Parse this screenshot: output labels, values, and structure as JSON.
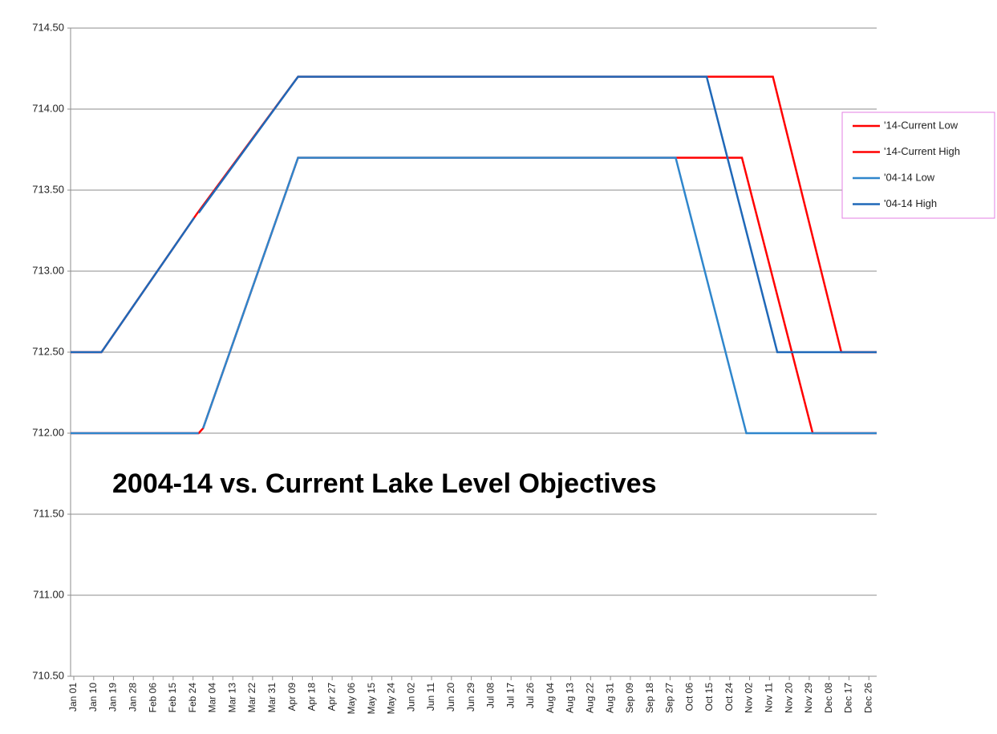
{
  "chart_data": {
    "type": "line",
    "annotation": "2004-14 vs. Current Lake Level Objectives",
    "xlim": [
      0,
      365
    ],
    "xticks": [
      {
        "value": 0,
        "label": "Jan 01"
      },
      {
        "value": 9,
        "label": "Jan 10"
      },
      {
        "value": 18,
        "label": "Jan 19"
      },
      {
        "value": 27,
        "label": "Jan 28"
      },
      {
        "value": 36,
        "label": "Feb 06"
      },
      {
        "value": 45,
        "label": "Feb 15"
      },
      {
        "value": 54,
        "label": "Feb 24"
      },
      {
        "value": 63,
        "label": "Mar 04"
      },
      {
        "value": 72,
        "label": "Mar 13"
      },
      {
        "value": 81,
        "label": "Mar 22"
      },
      {
        "value": 90,
        "label": "Mar 31"
      },
      {
        "value": 99,
        "label": "Apr 09"
      },
      {
        "value": 108,
        "label": "Apr 18"
      },
      {
        "value": 117,
        "label": "Apr 27"
      },
      {
        "value": 126,
        "label": "May 06"
      },
      {
        "value": 135,
        "label": "May 15"
      },
      {
        "value": 144,
        "label": "May 24"
      },
      {
        "value": 153,
        "label": "Jun 02"
      },
      {
        "value": 162,
        "label": "Jun 11"
      },
      {
        "value": 171,
        "label": "Jun 20"
      },
      {
        "value": 180,
        "label": "Jun 29"
      },
      {
        "value": 189,
        "label": "Jul 08"
      },
      {
        "value": 198,
        "label": "Jul 17"
      },
      {
        "value": 207,
        "label": "Jul 26"
      },
      {
        "value": 216,
        "label": "Aug 04"
      },
      {
        "value": 225,
        "label": "Aug 13"
      },
      {
        "value": 234,
        "label": "Aug 22"
      },
      {
        "value": 243,
        "label": "Aug 31"
      },
      {
        "value": 252,
        "label": "Sep 09"
      },
      {
        "value": 261,
        "label": "Sep 18"
      },
      {
        "value": 270,
        "label": "Sep 27"
      },
      {
        "value": 279,
        "label": "Oct 06"
      },
      {
        "value": 288,
        "label": "Oct 15"
      },
      {
        "value": 297,
        "label": "Oct 24"
      },
      {
        "value": 306,
        "label": "Nov 02"
      },
      {
        "value": 315,
        "label": "Nov 11"
      },
      {
        "value": 324,
        "label": "Nov 20"
      },
      {
        "value": 333,
        "label": "Nov 29"
      },
      {
        "value": 342,
        "label": "Dec 08"
      },
      {
        "value": 351,
        "label": "Dec 17"
      },
      {
        "value": 360,
        "label": "Dec 26"
      }
    ],
    "ylim": [
      710.5,
      714.5
    ],
    "yticks": [
      {
        "value": 710.5,
        "label": "710.50"
      },
      {
        "value": 711,
        "label": "711.00"
      },
      {
        "value": 711.5,
        "label": "711.50"
      },
      {
        "value": 712,
        "label": "712.00"
      },
      {
        "value": 712.5,
        "label": "712.50"
      },
      {
        "value": 713,
        "label": "713.00"
      },
      {
        "value": 713.5,
        "label": "713.50"
      },
      {
        "value": 714,
        "label": "714.00"
      },
      {
        "value": 714.5,
        "label": "714.50"
      }
    ],
    "grid": true,
    "legend": "right",
    "series": [
      {
        "name": "'14-Current Low",
        "color": "#ff0000",
        "x": [
          0,
          58,
          60,
          103,
          274,
          304,
          336,
          365
        ],
        "values": [
          712,
          712,
          712.03,
          713.7,
          713.7,
          713.7,
          712,
          712
        ]
      },
      {
        "name": "'14-Current High",
        "color": "#ff0000",
        "x": [
          0,
          14,
          57,
          103,
          288,
          318,
          349,
          365
        ],
        "values": [
          712.5,
          712.5,
          713.35,
          714.2,
          714.2,
          714.2,
          712.5,
          712.5
        ]
      },
      {
        "name": "'04-14 Low",
        "color": "#2f86cc",
        "x": [
          0,
          58,
          59,
          60,
          103,
          274,
          306,
          365
        ],
        "values": [
          712,
          712,
          null,
          712.03,
          713.7,
          713.7,
          712,
          712
        ]
      },
      {
        "name": "'04-14 High",
        "color": "#1f68b8",
        "x": [
          0,
          14,
          56,
          57,
          58,
          103,
          288,
          320,
          365
        ],
        "values": [
          712.5,
          712.5,
          713.33,
          null,
          713.36,
          714.2,
          714.2,
          712.5,
          712.5
        ]
      }
    ]
  }
}
